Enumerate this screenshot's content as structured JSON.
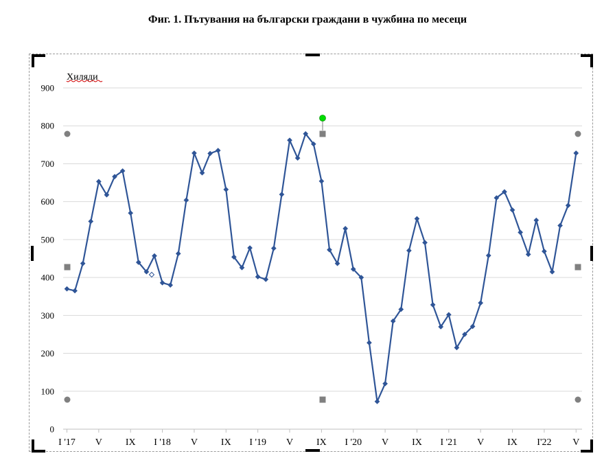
{
  "title": "Фиг. 1. Пътувания на български граждани в чужбина по месеци",
  "colors": {
    "series": "#2f5597",
    "grid": "#d9d9d9",
    "axis": "#bfbfbf",
    "handle": "#808080",
    "rotate_handle": "#00dd00"
  },
  "chart_data": {
    "type": "line",
    "title": "",
    "xlabel": "",
    "ylabel": "Хиляди",
    "ylim": [
      0,
      900
    ],
    "yticks": [
      0,
      100,
      200,
      300,
      400,
      500,
      600,
      700,
      800,
      900
    ],
    "grid": true,
    "legend": "none",
    "x_tick_labels": [
      {
        "index": 0,
        "label": "I '17"
      },
      {
        "index": 4,
        "label": "V"
      },
      {
        "index": 8,
        "label": "IX"
      },
      {
        "index": 12,
        "label": "I '18"
      },
      {
        "index": 16,
        "label": "V"
      },
      {
        "index": 20,
        "label": "IX"
      },
      {
        "index": 24,
        "label": "I '19"
      },
      {
        "index": 28,
        "label": "V"
      },
      {
        "index": 32,
        "label": "IX"
      },
      {
        "index": 36,
        "label": "I '20"
      },
      {
        "index": 40,
        "label": "V"
      },
      {
        "index": 44,
        "label": "IX"
      },
      {
        "index": 48,
        "label": "I '21"
      },
      {
        "index": 52,
        "label": "V"
      },
      {
        "index": 56,
        "label": "IX"
      },
      {
        "index": 60,
        "label": "I'22"
      },
      {
        "index": 64,
        "label": "V"
      }
    ],
    "series": [
      {
        "values": [
          370,
          365,
          437,
          548,
          653,
          618,
          666,
          681,
          570,
          440,
          415,
          457,
          386,
          380,
          463,
          604,
          728,
          676,
          727,
          735,
          632,
          454,
          426,
          478,
          402,
          395,
          477,
          619,
          762,
          715,
          779,
          752,
          654,
          473,
          437,
          529,
          422,
          400,
          228,
          73,
          120,
          285,
          316,
          471,
          555,
          492,
          328,
          270,
          302,
          215,
          250,
          271,
          333,
          458,
          610,
          626,
          578,
          519,
          461,
          551,
          469,
          415,
          537,
          590,
          728
        ]
      }
    ]
  }
}
